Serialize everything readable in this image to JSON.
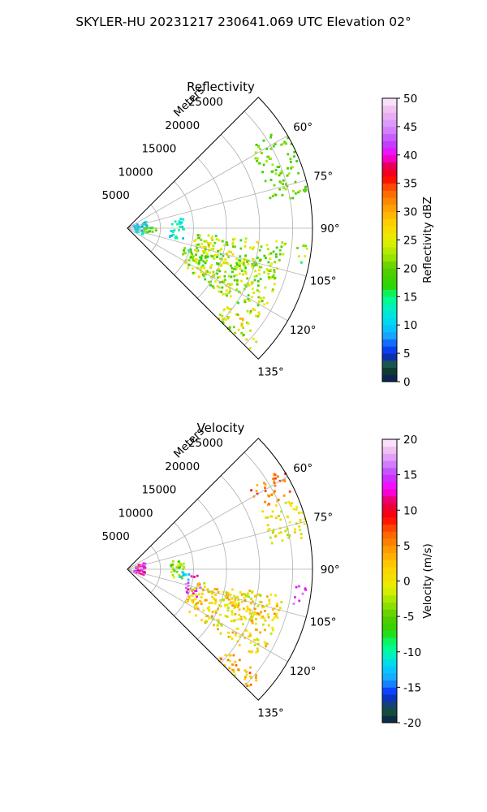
{
  "figure": {
    "title": "SKYLER-HU  20231217  230641.069 UTC Elevation 02°"
  },
  "chart_data": [
    {
      "type": "polar-sector",
      "title": "Reflectivity",
      "radial_label": "Meters",
      "radial_ticks": [
        5000,
        10000,
        15000,
        20000,
        25000
      ],
      "rlim": [
        0,
        28000
      ],
      "angle_ticks": [
        "60°",
        "75°",
        "90°",
        "105°",
        "120°",
        "135°"
      ],
      "angle_tick_values": [
        60,
        75,
        90,
        105,
        120,
        135
      ],
      "theta_range": [
        45,
        135
      ],
      "grid": true,
      "colorbar": {
        "label": "Reflectivity dBZ",
        "min": 0,
        "max": 50,
        "ticks": [
          "0",
          "5",
          "10",
          "15",
          "20",
          "25",
          "30",
          "35",
          "40",
          "45",
          "50"
        ],
        "stops": [
          {
            "v": 0,
            "c": "#0a1a5e"
          },
          {
            "v": 2,
            "c": "#0f3d2e"
          },
          {
            "v": 3,
            "c": "#1b5c45"
          },
          {
            "v": 4,
            "c": "#0b2aa0"
          },
          {
            "v": 6,
            "c": "#0a44ff"
          },
          {
            "v": 8,
            "c": "#1aa0ff"
          },
          {
            "v": 10,
            "c": "#00d2ff"
          },
          {
            "v": 13,
            "c": "#00f0c0"
          },
          {
            "v": 15,
            "c": "#00ff80"
          },
          {
            "v": 17,
            "c": "#2ed400"
          },
          {
            "v": 20,
            "c": "#58cc00"
          },
          {
            "v": 22,
            "c": "#9ae600"
          },
          {
            "v": 25,
            "c": "#e6f000"
          },
          {
            "v": 28,
            "c": "#ffd000"
          },
          {
            "v": 31,
            "c": "#ff9a00"
          },
          {
            "v": 34,
            "c": "#ff5a00"
          },
          {
            "v": 36,
            "c": "#ff0000"
          },
          {
            "v": 38,
            "c": "#e6004a"
          },
          {
            "v": 40,
            "c": "#ff00ff"
          },
          {
            "v": 42,
            "c": "#c040ff"
          },
          {
            "v": 45,
            "c": "#d890ff"
          },
          {
            "v": 48,
            "c": "#f0c0f0"
          },
          {
            "v": 50,
            "c": "#fff0ff"
          }
        ]
      },
      "features": [
        {
          "theta": [
            57,
            80
          ],
          "r": [
            22000,
            28000
          ],
          "value": 20,
          "density": 0.55,
          "spread": 3
        },
        {
          "theta": [
            80,
            102
          ],
          "r": [
            6500,
            8600
          ],
          "value": 12,
          "density": 0.6,
          "spread": 4
        },
        {
          "theta": [
            70,
            112
          ],
          "r": [
            1000,
            3000
          ],
          "value": 11,
          "density": 0.5,
          "spread": 4
        },
        {
          "theta": [
            88,
            104
          ],
          "r": [
            2500,
            4500
          ],
          "value": 20,
          "density": 0.4,
          "spread": 4
        },
        {
          "theta": [
            95,
            125
          ],
          "r": [
            10000,
            24000
          ],
          "value": 22,
          "density": 0.7,
          "spread": 6
        },
        {
          "theta": [
            105,
            110
          ],
          "r": [
            15000,
            24000
          ],
          "value": 22,
          "density": 0.7,
          "spread": 6
        },
        {
          "theta": [
            108,
            116
          ],
          "r": [
            9000,
            13000
          ],
          "value": 18,
          "density": 0.6,
          "spread": 6
        },
        {
          "theta": [
            128,
            137
          ],
          "r": [
            19000,
            26000
          ],
          "value": 24,
          "density": 0.75,
          "spread": 6
        },
        {
          "theta": [
            95,
            102
          ],
          "r": [
            25500,
            27500
          ],
          "value": 21,
          "density": 0.5,
          "spread": 6
        }
      ]
    },
    {
      "type": "polar-sector",
      "title": "Velocity",
      "radial_label": "Meters",
      "radial_ticks": [
        5000,
        10000,
        15000,
        20000,
        25000
      ],
      "rlim": [
        0,
        28000
      ],
      "angle_ticks": [
        "60°",
        "75°",
        "90°",
        "105°",
        "120°",
        "135°"
      ],
      "angle_tick_values": [
        60,
        75,
        90,
        105,
        120,
        135
      ],
      "theta_range": [
        45,
        135
      ],
      "grid": true,
      "colorbar": {
        "label": "Velocity (m/s)",
        "min": -20,
        "max": 20,
        "ticks": [
          "-20",
          "-15",
          "-10",
          "-5",
          "0",
          "5",
          "10",
          "15",
          "20"
        ],
        "stops": [
          {
            "v": -20,
            "c": "#0a1a5e"
          },
          {
            "v": -19,
            "c": "#0f3d2e"
          },
          {
            "v": -18,
            "c": "#1b5c45"
          },
          {
            "v": -17,
            "c": "#0b2aa0"
          },
          {
            "v": -15.5,
            "c": "#0a44ff"
          },
          {
            "v": -14,
            "c": "#1aa0ff"
          },
          {
            "v": -12,
            "c": "#00d2ff"
          },
          {
            "v": -10.5,
            "c": "#00f0c0"
          },
          {
            "v": -9,
            "c": "#00ff80"
          },
          {
            "v": -7,
            "c": "#2ed400"
          },
          {
            "v": -5,
            "c": "#58cc00"
          },
          {
            "v": -3,
            "c": "#9ae600"
          },
          {
            "v": -1,
            "c": "#e6f000"
          },
          {
            "v": 2,
            "c": "#ffd000"
          },
          {
            "v": 4.5,
            "c": "#ff9a00"
          },
          {
            "v": 7,
            "c": "#ff5a00"
          },
          {
            "v": 9,
            "c": "#ff0000"
          },
          {
            "v": 11,
            "c": "#e6004a"
          },
          {
            "v": 13,
            "c": "#ff00ff"
          },
          {
            "v": 15,
            "c": "#c040ff"
          },
          {
            "v": 17,
            "c": "#d890ff"
          },
          {
            "v": 18.5,
            "c": "#f0c0f0"
          },
          {
            "v": 20,
            "c": "#fff0ff"
          }
        ]
      },
      "features": [
        {
          "theta": [
            57,
            66
          ],
          "r": [
            22000,
            28000
          ],
          "value": 6,
          "density": 0.6,
          "spread": 3
        },
        {
          "theta": [
            66,
            80
          ],
          "r": [
            22000,
            28000
          ],
          "value": 0,
          "density": 0.6,
          "spread": 3
        },
        {
          "theta": [
            80,
            100
          ],
          "r": [
            6500,
            8600
          ],
          "value": -4,
          "density": 0.6,
          "spread": 3
        },
        {
          "theta": [
            70,
            110
          ],
          "r": [
            1000,
            3000
          ],
          "value": 12,
          "density": 0.45,
          "spread": 4
        },
        {
          "theta": [
            95,
            112
          ],
          "r": [
            9000,
            11500
          ],
          "value": 13,
          "density": 0.5,
          "spread": 4
        },
        {
          "theta": [
            92,
            100
          ],
          "r": [
            7500,
            9500
          ],
          "value": -12,
          "density": 0.5,
          "spread": 2
        },
        {
          "theta": [
            100,
            125
          ],
          "r": [
            10000,
            24000
          ],
          "value": 1,
          "density": 0.65,
          "spread": 4
        },
        {
          "theta": [
            105,
            110
          ],
          "r": [
            15000,
            24000
          ],
          "value": 2,
          "density": 0.7,
          "spread": 4
        },
        {
          "theta": [
            128,
            137
          ],
          "r": [
            19000,
            26000
          ],
          "value": 3,
          "density": 0.75,
          "spread": 5
        },
        {
          "theta": [
            95,
            102
          ],
          "r": [
            25500,
            27500
          ],
          "value": 15,
          "density": 0.5,
          "spread": 3
        }
      ]
    }
  ]
}
